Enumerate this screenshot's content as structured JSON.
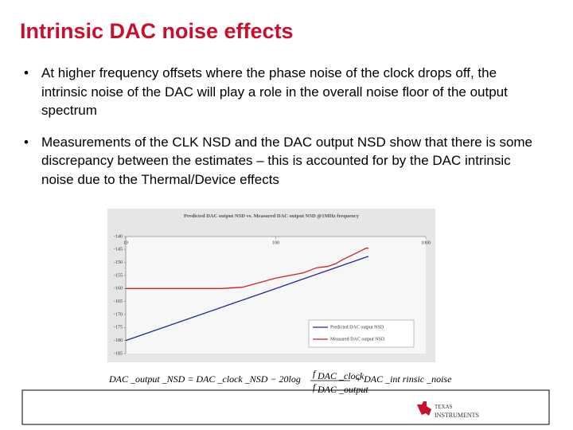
{
  "title": "Intrinsic DAC noise effects",
  "bullets": [
    "At higher frequency offsets where the phase noise of the clock drops off, the intrinsic noise of the DAC will play a role in the overall noise floor of the output spectrum",
    "Measurements of the CLK NSD and the DAC output NSD show that there is some discrepancy between the estimates – this is accounted for by the DAC intrinsic noise due to the Thermal/Device effects"
  ],
  "formula": {
    "lhs": "DAC _output _NSD = DAC _clock _NSD − 20log",
    "num": "f",
    "num_sub": "DAC _clock",
    "den": "f",
    "den_sub": "DAC _output",
    "rhs": "+ DAC _int rinsic _noise"
  },
  "logo": {
    "line1": "TEXAS",
    "line2": "INSTRUMENTS"
  },
  "chart_data": {
    "type": "line",
    "title": "Predicted DAC output NSD vs. Measured DAC output NSD @1MHz frequency",
    "xlog": true,
    "xlim": [
      10,
      1000
    ],
    "xticks": [
      10,
      100,
      1000
    ],
    "ylim": [
      -185,
      -140
    ],
    "yticks": [
      -140,
      -145,
      -150,
      -155,
      -160,
      -165,
      -170,
      -175,
      -180,
      -185
    ],
    "grid": false,
    "legend": "lower right",
    "series": [
      {
        "name": "Predicted DAC output NSD",
        "color": "#1f2a8c",
        "x": [
          10,
          100,
          415
        ],
        "values": [
          -180,
          -160,
          -147.6
        ]
      },
      {
        "name": "Measured DAC output NSD",
        "color": "#d02020",
        "x": [
          10,
          44,
          60,
          100,
          152,
          188,
          222,
          250,
          277,
          355,
          400,
          415
        ],
        "values": [
          -160,
          -160,
          -159.5,
          -156,
          -154,
          -152,
          -151.5,
          -150.5,
          -149,
          -146,
          -144.5,
          -144.5
        ]
      }
    ]
  }
}
